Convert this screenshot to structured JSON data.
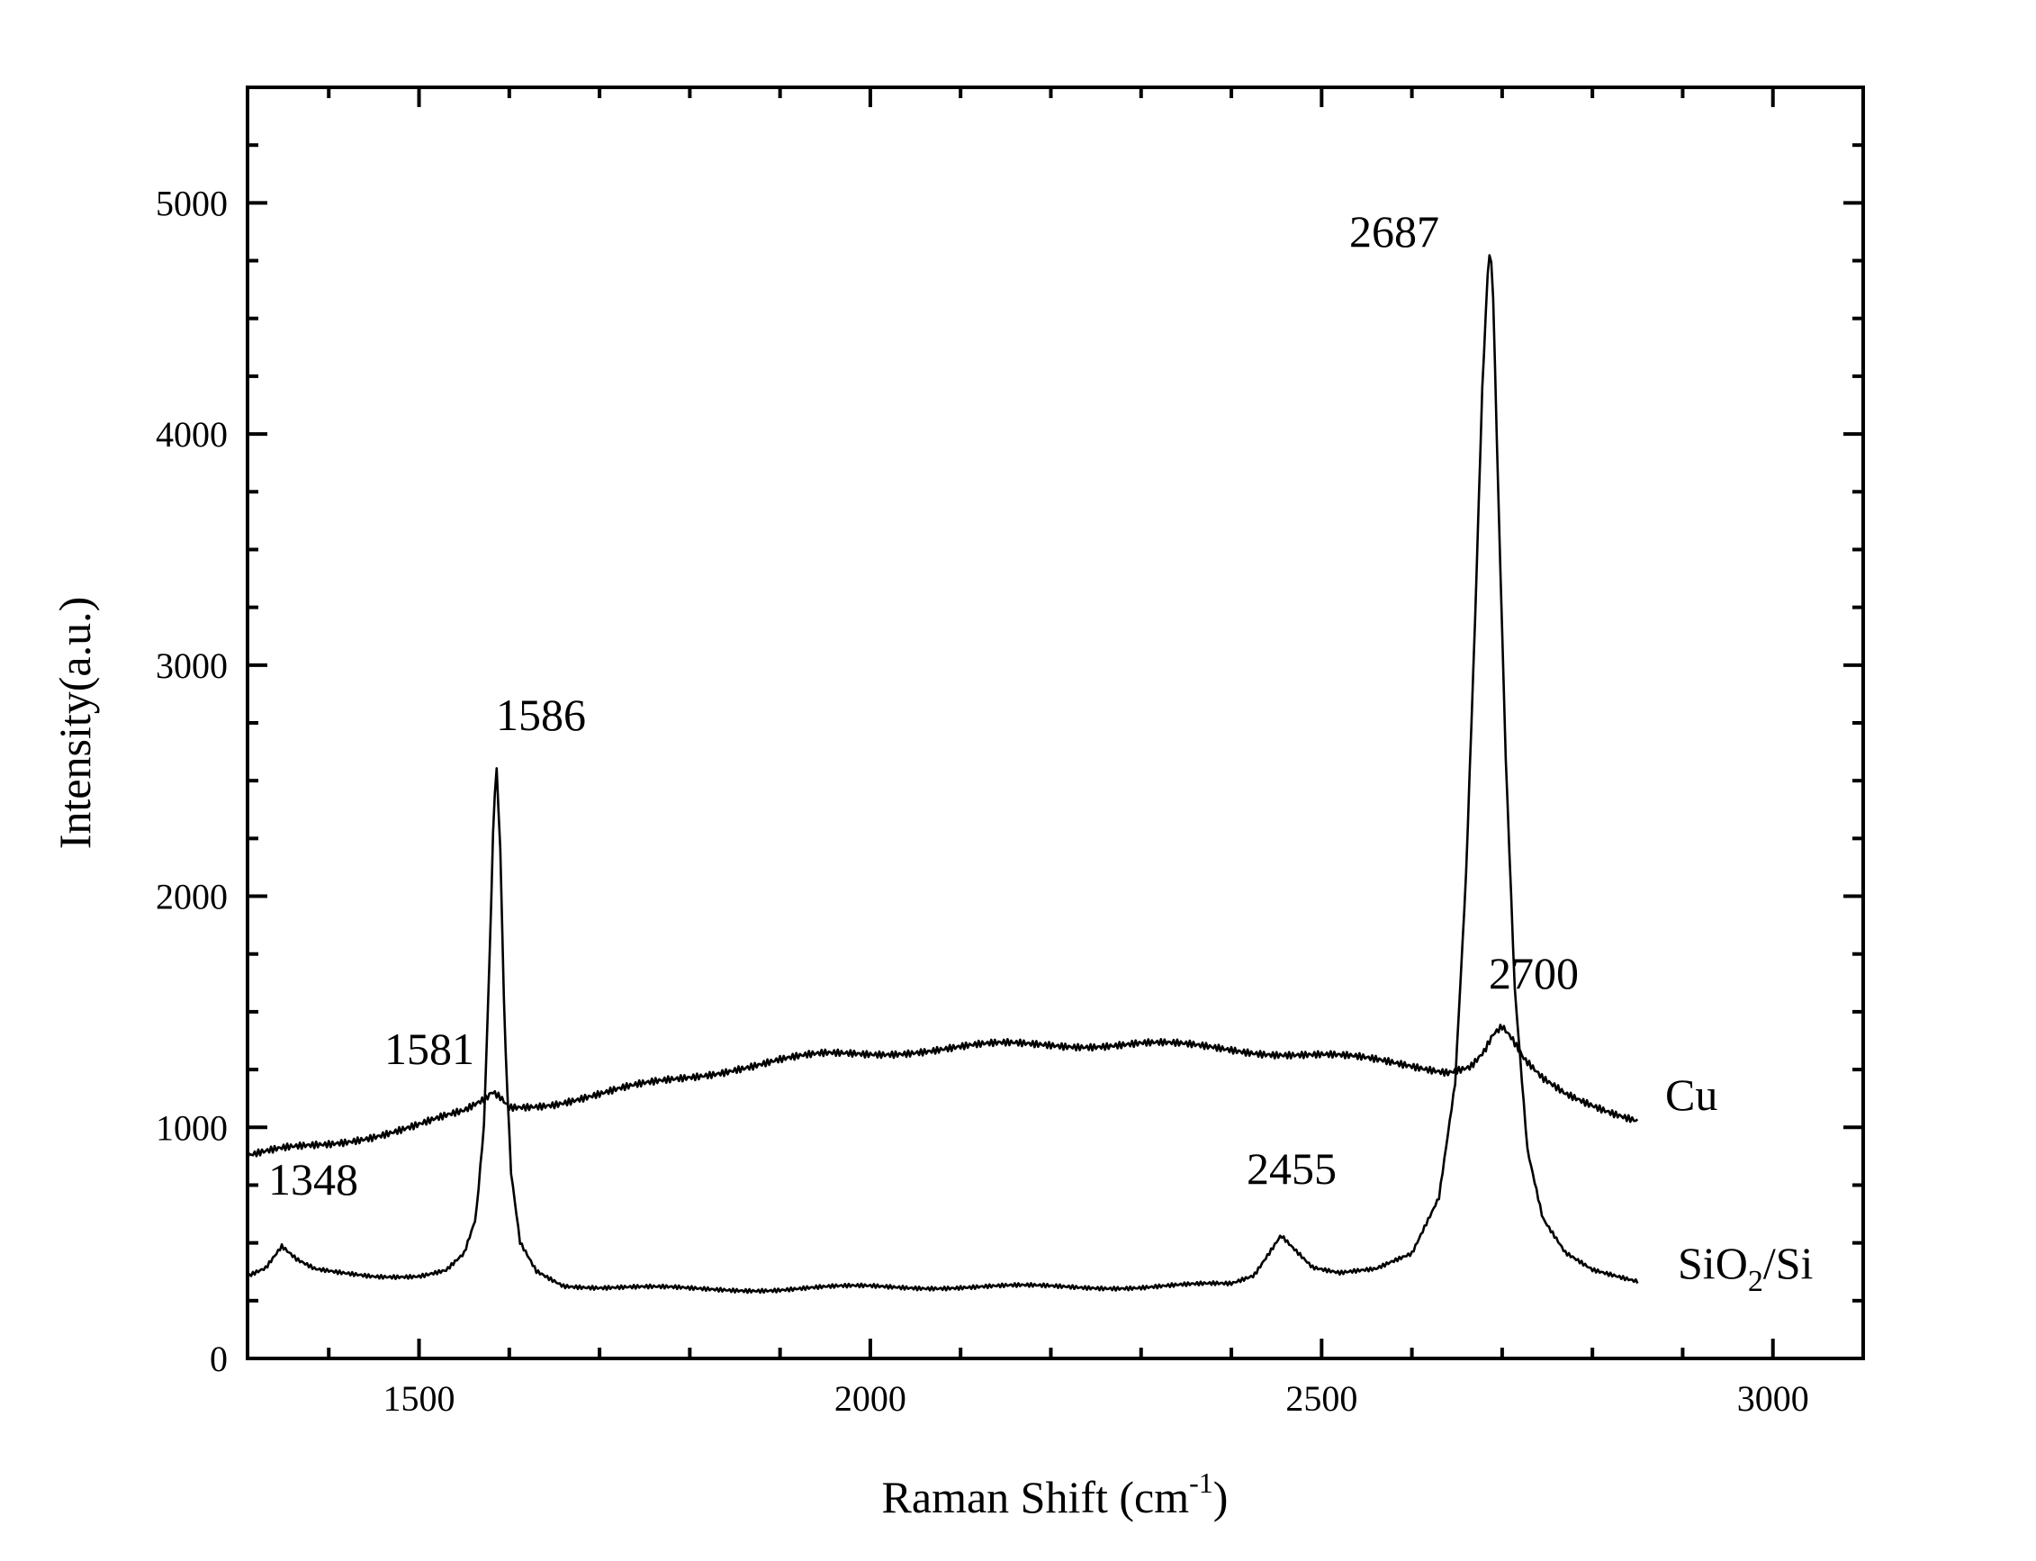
{
  "chart_data": {
    "type": "line",
    "title": "",
    "xlabel": "Raman Shift (cm",
    "xlabel_superscript": "-1",
    "xlabel_close": ")",
    "ylabel": "Intensity(a.u.)",
    "xlim": [
      1310,
      3100
    ],
    "ylim": [
      0,
      5500
    ],
    "x_ticks": [
      1500,
      2000,
      2500,
      3000
    ],
    "y_ticks": [
      0,
      1000,
      2000,
      3000,
      4000,
      5000
    ],
    "grid": false,
    "series": [
      {
        "name": "Cu",
        "x": [
          1310,
          1350,
          1400,
          1450,
          1500,
          1550,
          1575,
          1581,
          1590,
          1600,
          1650,
          1700,
          1750,
          1800,
          1850,
          1900,
          1950,
          2000,
          2050,
          2100,
          2150,
          2200,
          2250,
          2300,
          2350,
          2400,
          2450,
          2500,
          2550,
          2600,
          2640,
          2665,
          2680,
          2690,
          2700,
          2710,
          2725,
          2745,
          2770,
          2800,
          2850
        ],
        "y": [
          870,
          900,
          930,
          970,
          1010,
          1060,
          1120,
          1150,
          1130,
          1090,
          1110,
          1140,
          1180,
          1220,
          1260,
          1290,
          1310,
          1320,
          1335,
          1345,
          1355,
          1360,
          1360,
          1360,
          1350,
          1340,
          1325,
          1310,
          1290,
          1270,
          1250,
          1270,
          1330,
          1400,
          1430,
          1380,
          1280,
          1200,
          1140,
          1100,
          1040
        ]
      },
      {
        "name": "SiO",
        "name_subscript": "2",
        "name_suffix": "/Si",
        "x": [
          1310,
          1330,
          1348,
          1365,
          1385,
          1410,
          1450,
          1500,
          1530,
          1550,
          1563,
          1572,
          1578,
          1583,
          1586,
          1590,
          1595,
          1602,
          1612,
          1630,
          1660,
          1700,
          1800,
          1900,
          2000,
          2100,
          2200,
          2300,
          2400,
          2425,
          2440,
          2455,
          2470,
          2490,
          2520,
          2560,
          2600,
          2630,
          2648,
          2660,
          2670,
          2678,
          2684,
          2687,
          2690,
          2696,
          2704,
          2714,
          2728,
          2745,
          2770,
          2800,
          2850
        ],
        "y": [
          360,
          390,
          480,
          420,
          380,
          370,
          360,
          360,
          380,
          450,
          600,
          1000,
          1700,
          2400,
          2540,
          2200,
          1400,
          800,
          500,
          380,
          320,
          310,
          300,
          300,
          310,
          310,
          310,
          310,
          320,
          360,
          450,
          540,
          480,
          400,
          370,
          380,
          450,
          700,
          1200,
          2100,
          3200,
          4200,
          4700,
          4820,
          4600,
          3700,
          2600,
          1600,
          900,
          600,
          450,
          380,
          340
        ]
      }
    ],
    "annotations": [
      {
        "text": "1348"
      },
      {
        "text": "1581"
      },
      {
        "text": "1586"
      },
      {
        "text": "2455"
      },
      {
        "text": "2687"
      },
      {
        "text": "2700"
      }
    ]
  }
}
